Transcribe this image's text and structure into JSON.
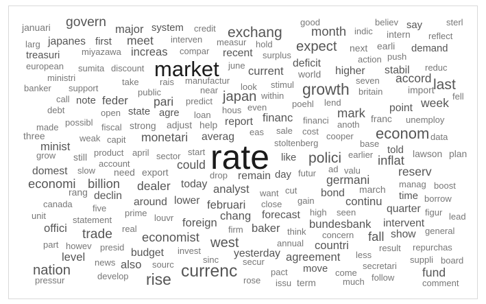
{
  "word_cloud": {
    "colors": {
      "dark": "#1a1a1a",
      "mid": "#555555",
      "light": "#777777"
    },
    "words": [
      {
        "text": "rate",
        "weight": 100
      },
      {
        "text": "market",
        "weight": 58
      },
      {
        "text": "currenc",
        "weight": 44
      },
      {
        "text": "growth",
        "weight": 40
      },
      {
        "text": "rise",
        "weight": 40
      },
      {
        "text": "econom",
        "weight": 38
      },
      {
        "text": "exchang",
        "weight": 36
      },
      {
        "text": "polici",
        "weight": 36
      },
      {
        "text": "last",
        "weight": 36
      },
      {
        "text": "expect",
        "weight": 34
      },
      {
        "text": "japan",
        "weight": 34
      },
      {
        "text": "west",
        "weight": 34
      },
      {
        "text": "nation",
        "weight": 34
      },
      {
        "text": "govern",
        "weight": 32
      },
      {
        "text": "trade",
        "weight": 32
      },
      {
        "text": "economi",
        "weight": 30
      },
      {
        "text": "billion",
        "weight": 30
      },
      {
        "text": "economist",
        "weight": 30
      },
      {
        "text": "fall",
        "weight": 30
      },
      {
        "text": "mark",
        "weight": 30
      },
      {
        "text": "month",
        "weight": 30
      },
      {
        "text": "inflat",
        "weight": 30
      },
      {
        "text": "could",
        "weight": 28
      },
      {
        "text": "monetari",
        "weight": 28
      },
      {
        "text": "dealer",
        "weight": 28
      },
      {
        "text": "pari",
        "weight": 28
      },
      {
        "text": "meet",
        "weight": 28
      },
      {
        "text": "fund",
        "weight": 28
      },
      {
        "text": "week",
        "weight": 28
      },
      {
        "text": "accord",
        "weight": 28
      },
      {
        "text": "reserv",
        "weight": 28
      },
      {
        "text": "germani",
        "weight": 28
      },
      {
        "text": "agreement",
        "weight": 26
      },
      {
        "text": "increas",
        "weight": 26
      },
      {
        "text": "current",
        "weight": 26
      },
      {
        "text": "feder",
        "weight": 26
      },
      {
        "text": "major",
        "weight": 26
      },
      {
        "text": "level",
        "weight": 26
      },
      {
        "text": "also",
        "weight": 26
      },
      {
        "text": "baker",
        "weight": 26
      },
      {
        "text": "chang",
        "weight": 26
      },
      {
        "text": "countri",
        "weight": 26
      },
      {
        "text": "bundesbank",
        "weight": 26
      },
      {
        "text": "continu",
        "weight": 26
      },
      {
        "text": "februari",
        "weight": 26
      },
      {
        "text": "foreign",
        "weight": 26
      },
      {
        "text": "analyst",
        "weight": 26
      },
      {
        "text": "minist",
        "weight": 26
      },
      {
        "text": "offici",
        "weight": 26
      },
      {
        "text": "financ",
        "weight": 26
      },
      {
        "text": "japanes",
        "weight": 24
      },
      {
        "text": "forecast",
        "weight": 24
      },
      {
        "text": "report",
        "weight": 24
      },
      {
        "text": "yesterday",
        "weight": 24
      },
      {
        "text": "declin",
        "weight": 24
      },
      {
        "text": "domest",
        "weight": 24
      },
      {
        "text": "lower",
        "weight": 24
      },
      {
        "text": "around",
        "weight": 24
      },
      {
        "text": "today",
        "weight": 24
      },
      {
        "text": "remain",
        "weight": 24
      },
      {
        "text": "bond",
        "weight": 24
      },
      {
        "text": "intervent",
        "weight": 24
      },
      {
        "text": "show",
        "weight": 24
      },
      {
        "text": "recent",
        "weight": 24
      },
      {
        "text": "budget",
        "weight": 24
      },
      {
        "text": "deficit",
        "weight": 24
      },
      {
        "text": "averag",
        "weight": 24
      },
      {
        "text": "higher",
        "weight": 24
      },
      {
        "text": "stabil",
        "weight": 24
      },
      {
        "text": "point",
        "weight": 24
      },
      {
        "text": "quarter",
        "weight": 24
      },
      {
        "text": "demand",
        "weight": 22
      },
      {
        "text": "treasuri",
        "weight": 22
      },
      {
        "text": "first",
        "weight": 22
      },
      {
        "text": "system",
        "weight": 22
      },
      {
        "text": "state",
        "weight": 22
      },
      {
        "text": "agre",
        "weight": 22
      },
      {
        "text": "note",
        "weight": 22
      },
      {
        "text": "move",
        "weight": 22
      },
      {
        "text": "time",
        "weight": 22
      },
      {
        "text": "say",
        "weight": 22
      },
      {
        "text": "told",
        "weight": 22
      },
      {
        "text": "like",
        "weight": 22
      },
      {
        "text": "day",
        "weight": 22
      },
      {
        "text": "januari",
        "weight": 20
      },
      {
        "text": "strong",
        "weight": 20
      },
      {
        "text": "export",
        "weight": 20
      },
      {
        "text": "need",
        "weight": 20
      },
      {
        "text": "adjust",
        "weight": 20
      },
      {
        "text": "help",
        "weight": 20
      },
      {
        "text": "still",
        "weight": 20
      },
      {
        "text": "three",
        "weight": 20
      },
      {
        "text": "rang",
        "weight": 20
      },
      {
        "text": "march",
        "weight": 20
      },
      {
        "text": "world",
        "weight": 20
      },
      {
        "text": "next",
        "weight": 20
      },
      {
        "text": "intern",
        "weight": 20
      },
      {
        "text": "franc",
        "weight": 20
      },
      {
        "text": "term",
        "weight": 20
      },
      {
        "text": "lawson",
        "weight": 20
      },
      {
        "text": "plan",
        "weight": 20
      },
      {
        "text": "earli",
        "weight": 20
      },
      {
        "text": "import",
        "weight": 20
      },
      {
        "text": "sourc",
        "weight": 18
      },
      {
        "text": "news",
        "weight": 18
      },
      {
        "text": "develop",
        "weight": 18
      },
      {
        "text": "pressur",
        "weight": 18
      },
      {
        "text": "real",
        "weight": 18
      },
      {
        "text": "presid",
        "weight": 18
      },
      {
        "text": "howev",
        "weight": 18
      },
      {
        "text": "part",
        "weight": 18
      },
      {
        "text": "statement",
        "weight": 18
      },
      {
        "text": "unit",
        "weight": 18
      },
      {
        "text": "five",
        "weight": 18
      },
      {
        "text": "canada",
        "weight": 18
      },
      {
        "text": "slow",
        "weight": 18
      },
      {
        "text": "account",
        "weight": 18
      },
      {
        "text": "product",
        "weight": 18
      },
      {
        "text": "april",
        "weight": 18
      },
      {
        "text": "sector",
        "weight": 18
      },
      {
        "text": "start",
        "weight": 18
      },
      {
        "text": "drop",
        "weight": 18
      },
      {
        "text": "want",
        "weight": 18
      },
      {
        "text": "close",
        "weight": 18
      },
      {
        "text": "cut",
        "weight": 18
      },
      {
        "text": "gain",
        "weight": 18
      },
      {
        "text": "futur",
        "weight": 18
      },
      {
        "text": "high",
        "weight": 18
      },
      {
        "text": "seen",
        "weight": 18
      },
      {
        "text": "concern",
        "weight": 18
      },
      {
        "text": "result",
        "weight": 18
      },
      {
        "text": "annual",
        "weight": 18
      },
      {
        "text": "think",
        "weight": 18
      },
      {
        "text": "firm",
        "weight": 18
      },
      {
        "text": "sinc",
        "weight": 18
      },
      {
        "text": "invest",
        "weight": 18
      },
      {
        "text": "secur",
        "weight": 18
      },
      {
        "text": "pact",
        "weight": 18
      },
      {
        "text": "issu",
        "weight": 18
      },
      {
        "text": "rose",
        "weight": 18
      },
      {
        "text": "less",
        "weight": 18
      },
      {
        "text": "come",
        "weight": 18
      },
      {
        "text": "much",
        "weight": 18
      },
      {
        "text": "secretari",
        "weight": 18
      },
      {
        "text": "follow",
        "weight": 18
      },
      {
        "text": "comment",
        "weight": 18
      },
      {
        "text": "board",
        "weight": 18
      },
      {
        "text": "suppli",
        "weight": 18
      },
      {
        "text": "repurchas",
        "weight": 18
      },
      {
        "text": "general",
        "weight": 18
      },
      {
        "text": "lead",
        "weight": 18
      },
      {
        "text": "figur",
        "weight": 18
      },
      {
        "text": "borrow",
        "weight": 18
      },
      {
        "text": "boost",
        "weight": 18
      },
      {
        "text": "manag",
        "weight": 18
      },
      {
        "text": "earlier",
        "weight": 18
      },
      {
        "text": "base",
        "weight": 18
      },
      {
        "text": "valu",
        "weight": 18
      },
      {
        "text": "ad",
        "weight": 18
      },
      {
        "text": "stoltenberg",
        "weight": 18
      },
      {
        "text": "eas",
        "weight": 18
      },
      {
        "text": "sale",
        "weight": 18
      },
      {
        "text": "cost",
        "weight": 18
      },
      {
        "text": "cooper",
        "weight": 18
      },
      {
        "text": "anoth",
        "weight": 18
      },
      {
        "text": "data",
        "weight": 18
      },
      {
        "text": "unemploy",
        "weight": 18
      },
      {
        "text": "fell",
        "weight": 18
      },
      {
        "text": "reduc",
        "weight": 18
      },
      {
        "text": "britain",
        "weight": 18
      },
      {
        "text": "seven",
        "weight": 18
      },
      {
        "text": "action",
        "weight": 18
      },
      {
        "text": "push",
        "weight": 18
      },
      {
        "text": "reflect",
        "weight": 18
      },
      {
        "text": "indic",
        "weight": 18
      },
      {
        "text": "believ",
        "weight": 18
      },
      {
        "text": "sterl",
        "weight": 18
      },
      {
        "text": "good",
        "weight": 18
      },
      {
        "text": "credit",
        "weight": 18
      },
      {
        "text": "interven",
        "weight": 18
      },
      {
        "text": "measur",
        "weight": 18
      },
      {
        "text": "hold",
        "weight": 18
      },
      {
        "text": "compar",
        "weight": 18
      },
      {
        "text": "surplus",
        "weight": 18
      },
      {
        "text": "june",
        "weight": 18
      },
      {
        "text": "manufactur",
        "weight": 18
      },
      {
        "text": "look",
        "weight": 18
      },
      {
        "text": "stimul",
        "weight": 18
      },
      {
        "text": "within",
        "weight": 18
      },
      {
        "text": "near",
        "weight": 18
      },
      {
        "text": "predict",
        "weight": 18
      },
      {
        "text": "even",
        "weight": 18
      },
      {
        "text": "poehl",
        "weight": 18
      },
      {
        "text": "lend",
        "weight": 18
      },
      {
        "text": "financi",
        "weight": 18
      },
      {
        "text": "hous",
        "weight": 18
      },
      {
        "text": "loan",
        "weight": 18
      },
      {
        "text": "public",
        "weight": 18
      },
      {
        "text": "rais",
        "weight": 18
      },
      {
        "text": "take",
        "weight": 18
      },
      {
        "text": "discount",
        "weight": 18
      },
      {
        "text": "sumita",
        "weight": 18
      },
      {
        "text": "miyazawa",
        "weight": 18
      },
      {
        "text": "larg",
        "weight": 18
      },
      {
        "text": "european",
        "weight": 18
      },
      {
        "text": "ministri",
        "weight": 18
      },
      {
        "text": "banker",
        "weight": 18
      },
      {
        "text": "support",
        "weight": 18
      },
      {
        "text": "call",
        "weight": 18
      },
      {
        "text": "debt",
        "weight": 18
      },
      {
        "text": "possibl",
        "weight": 18
      },
      {
        "text": "made",
        "weight": 18
      },
      {
        "text": "fiscal",
        "weight": 18
      },
      {
        "text": "open",
        "weight": 18
      },
      {
        "text": "weak",
        "weight": 18
      },
      {
        "text": "capit",
        "weight": 18
      },
      {
        "text": "grow",
        "weight": 18
      },
      {
        "text": "prime",
        "weight": 18
      },
      {
        "text": "louvr",
        "weight": 18
      }
    ]
  }
}
